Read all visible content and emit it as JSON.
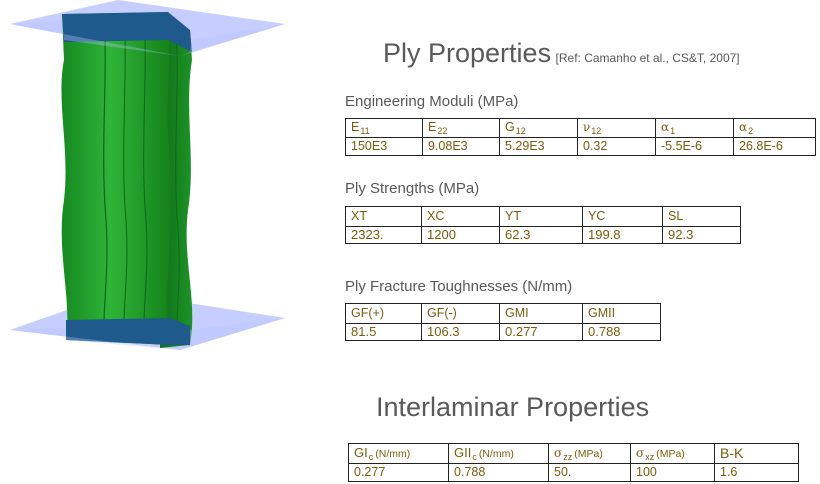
{
  "ply_title": "Ply Properties",
  "reference": "[Ref: Camanho et al., CS&T, 2007]",
  "engineering": {
    "label": "Engineering Moduli (MPa)",
    "headers": [
      {
        "sym": "E",
        "sub": "11",
        "greek": false
      },
      {
        "sym": "E",
        "sub": "22",
        "greek": false
      },
      {
        "sym": "G",
        "sub": "12",
        "greek": false
      },
      {
        "sym": "ν",
        "sub": "12",
        "greek": true
      },
      {
        "sym": "α",
        "sub": "1",
        "greek": true
      },
      {
        "sym": "α",
        "sub": "2",
        "greek": true
      }
    ],
    "values": [
      "150E3",
      "9.08E3",
      "5.29E3",
      "0.32",
      "-5.5E-6",
      "26.8E-6"
    ]
  },
  "strengths": {
    "label": "Ply Strengths (MPa)",
    "headers": [
      "XT",
      "XC",
      "YT",
      "YC",
      "SL"
    ],
    "values": [
      "2323.",
      "1200",
      "62.3",
      "199.8",
      "92.3"
    ]
  },
  "toughness": {
    "label": "Ply Fracture Toughnesses (N/mm)",
    "headers": [
      "GF(+)",
      "GF(-)",
      "GMI",
      "GMII"
    ],
    "values": [
      "81.5",
      "106.3",
      "0.277",
      "0.788"
    ]
  },
  "interlaminar_title": "Interlaminar Properties",
  "interlaminar": {
    "headers": [
      {
        "sym": "GI",
        "sub": "c",
        "unit": "(N/mm)",
        "greek": false
      },
      {
        "sym": "GII",
        "sub": "c",
        "unit": "(N/mm)",
        "greek": false
      },
      {
        "sym": "σ",
        "sub": "zz",
        "unit": "(MPa)",
        "greek": true
      },
      {
        "sym": "σ",
        "sub": "xz",
        "unit": "(MPa)",
        "greek": true
      },
      {
        "sym": "B-K",
        "sub": "",
        "unit": "",
        "greek": false
      }
    ],
    "values": [
      "0.277",
      "0.788",
      "50.",
      "100",
      "1.6"
    ]
  },
  "colors": {
    "panel_green": "#1f9a2a",
    "plane_blue": "#b8c2ff",
    "band_blue": "#1f5a8c",
    "value_text": "#7a5c0c"
  }
}
